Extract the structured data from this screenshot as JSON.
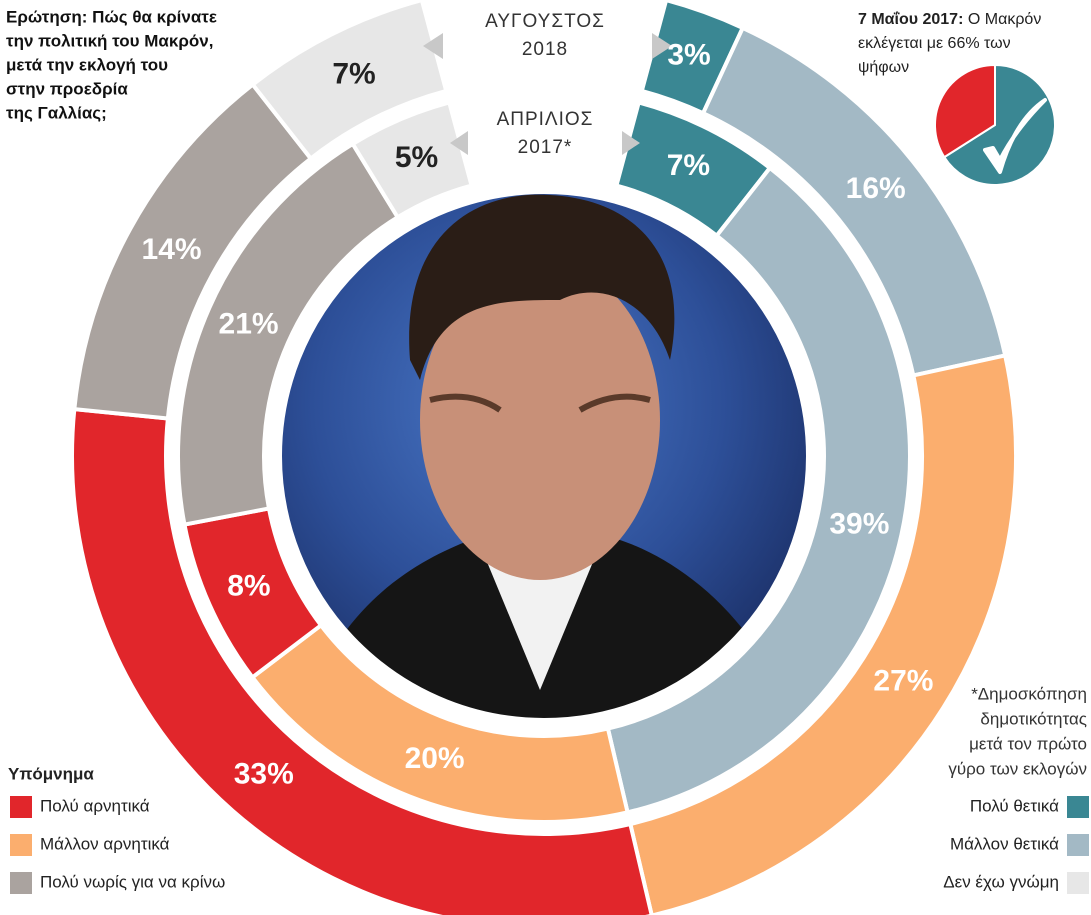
{
  "chart_data": {
    "type": "donut",
    "title_lines": [
      "Ερώτηση: Πώς θα κρίνατε",
      "την πολιτική του Μακρόν,",
      "μετά την εκλογή του",
      "στην προεδρία",
      "της Γαλλίας;"
    ],
    "categories": [
      "Πολύ θετικά",
      "Μάλλον θετικά",
      "Μάλλον αρνητικά",
      "Πολύ αρνητικά",
      "Πολύ νωρίς για να κρίνω",
      "Δεν έχω γνώμη"
    ],
    "colors": [
      "#3a8793",
      "#a3b9c5",
      "#fbae6e",
      "#e1262b",
      "#aaa39f",
      "#e7e7e7"
    ],
    "series": [
      {
        "name_lines": [
          "ΑΥΓΟΥΣΤΟΣ",
          "2018"
        ],
        "values": [
          3,
          16,
          27,
          33,
          14,
          7
        ],
        "value_labels": [
          "3%",
          "16%",
          "27%",
          "33%",
          "14%",
          "7%"
        ]
      },
      {
        "name_lines": [
          "ΑΠΡΙΛΙΟΣ",
          "2017*"
        ],
        "values": [
          7,
          39,
          20,
          8,
          21,
          5
        ],
        "value_labels": [
          "7%",
          "39%",
          "20%",
          "8%",
          "21%",
          "5%"
        ]
      }
    ],
    "legend_title": "Υπόμνημα",
    "note_lines": [
      "*Δημοσκόπηση",
      "δημοτικότητας",
      "μετά τον πρώτο",
      "γύρο των εκλογών"
    ],
    "inset": {
      "type": "pie",
      "date": "7 Μαΐου 2017:",
      "text_lines": [
        "Ο Μακρόν",
        "εκλέγεται με 66% των",
        "ψήφων"
      ],
      "values": [
        66,
        34
      ],
      "colors": [
        "#3a8793",
        "#e1262b"
      ]
    }
  }
}
